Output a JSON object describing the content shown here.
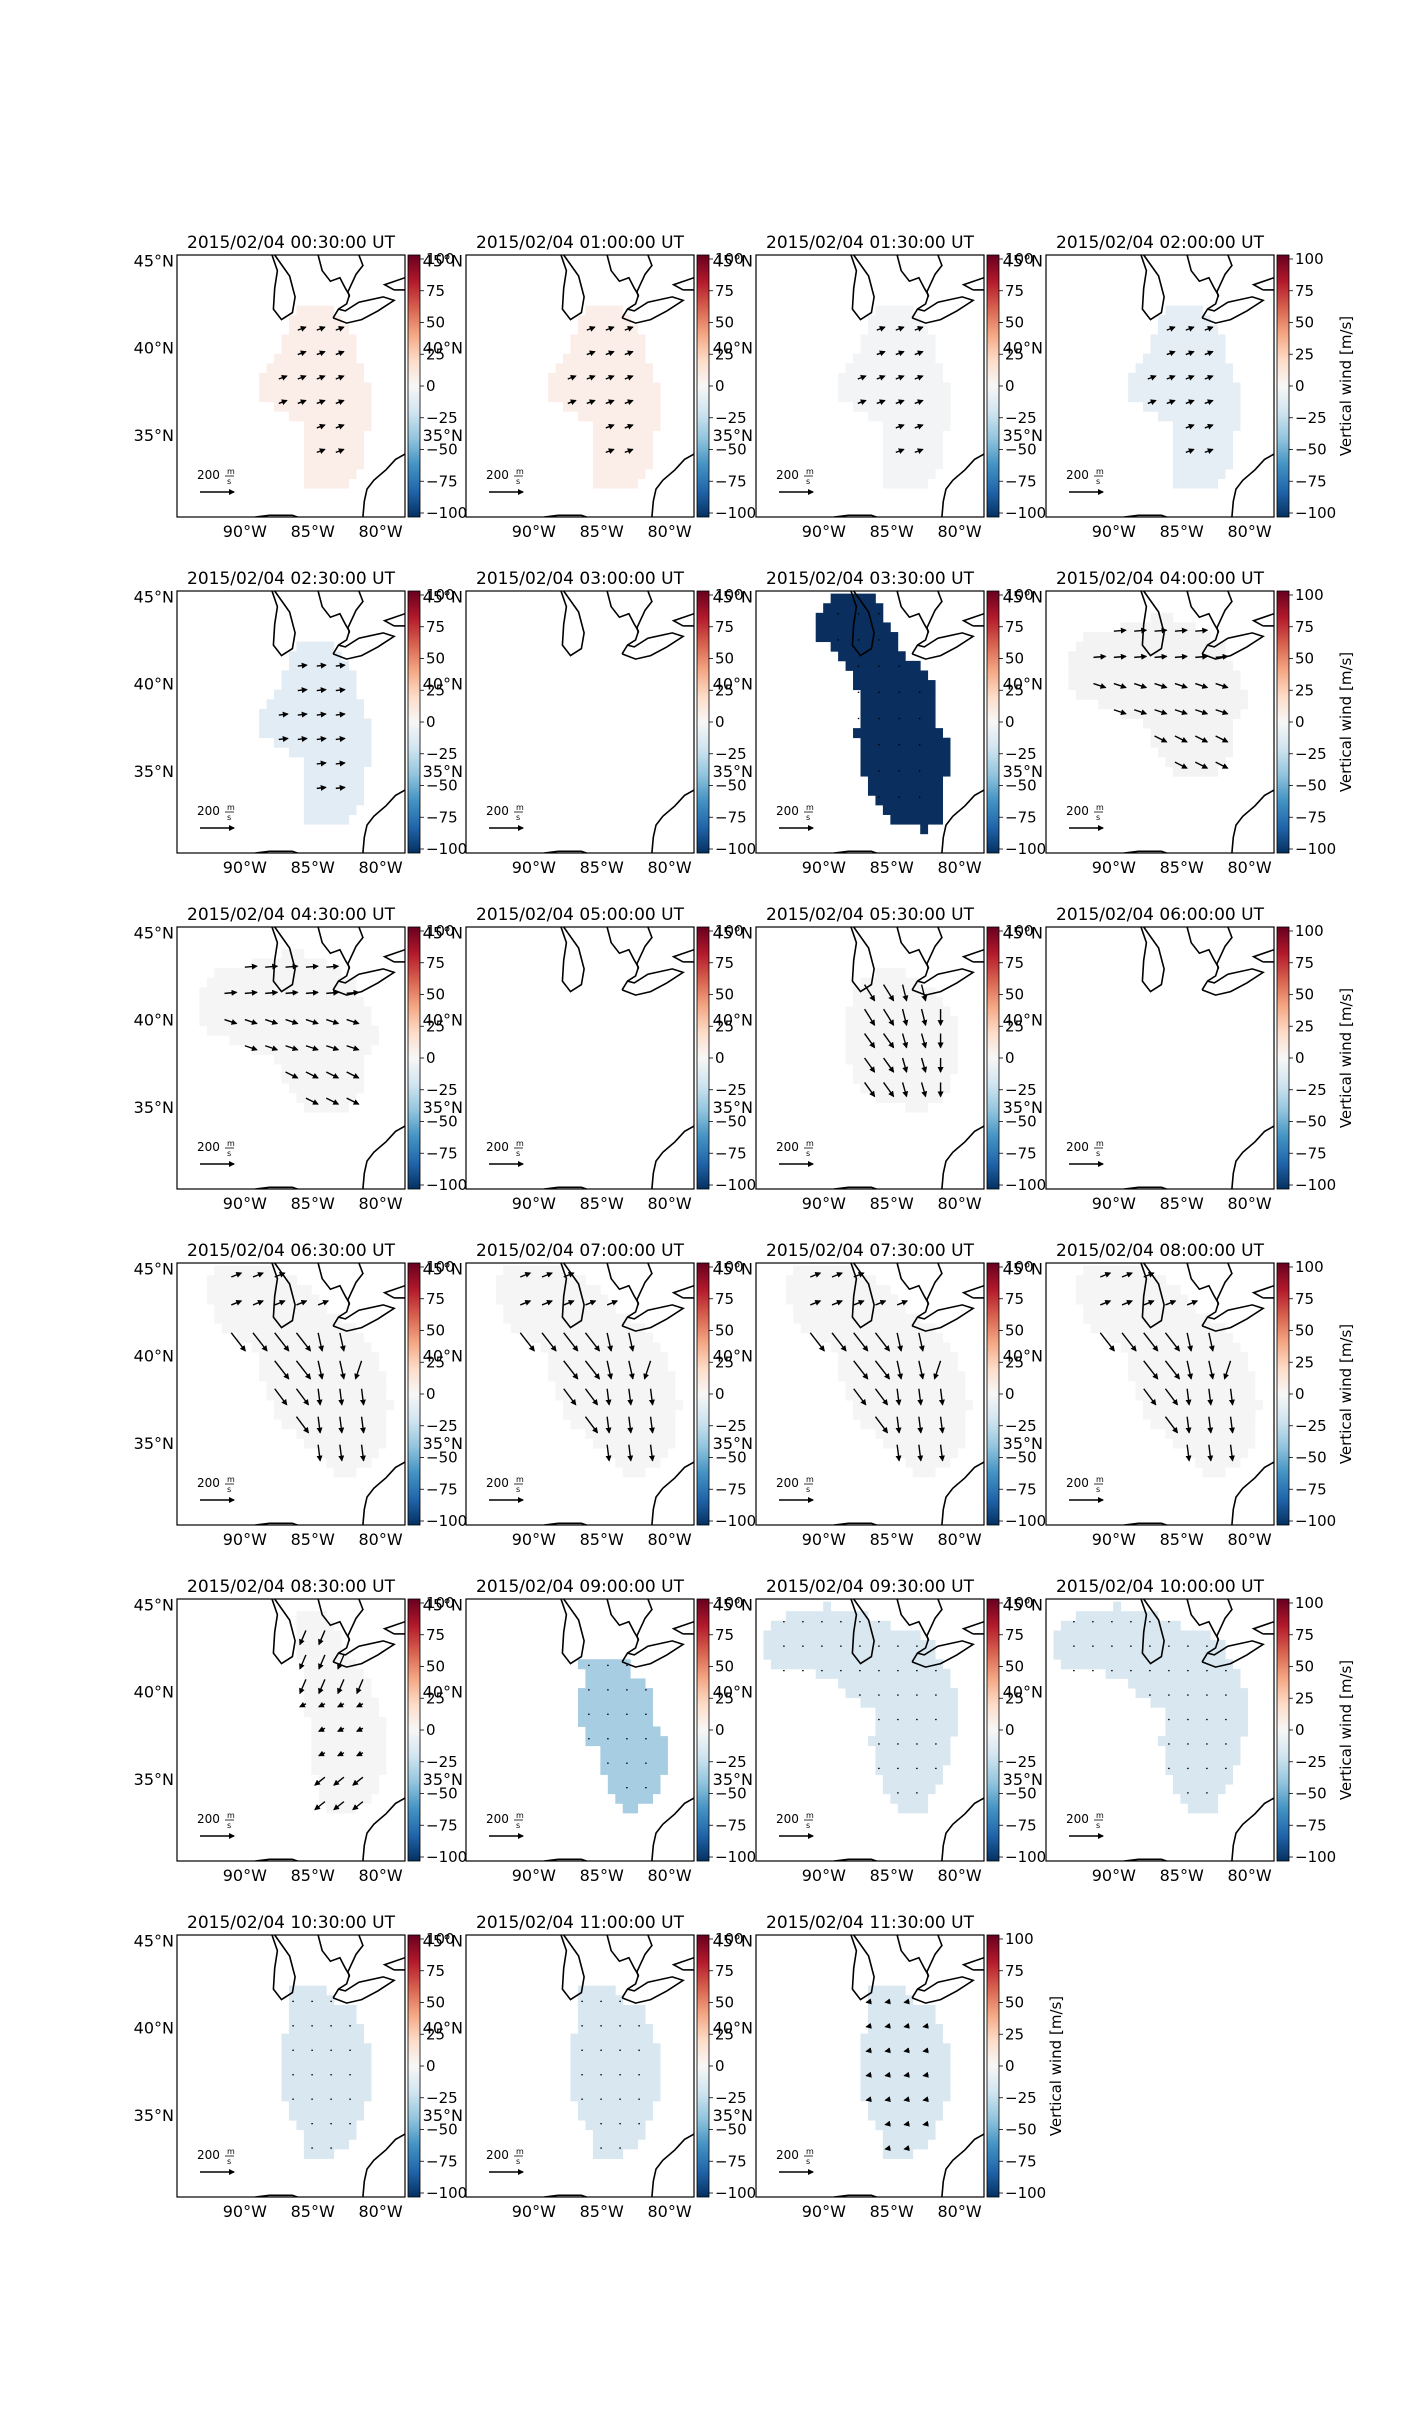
{
  "figure": {
    "colorbar_ticks": [
      "100",
      "75",
      "50",
      "25",
      "0",
      "−25",
      "−50",
      "−75",
      "−100"
    ],
    "colorbar_label": "Vertical wind [m/s]",
    "colorbar_range": [
      -100,
      100
    ],
    "colormap": "RdBu_r",
    "lat_labels": [
      "45°N",
      "40°N",
      "35°N"
    ],
    "lon_labels": [
      "90°W",
      "85°W",
      "80°W"
    ],
    "scale_label": "200",
    "scale_unit_num": "m",
    "scale_unit_den": "s",
    "coastline_color": "#000000",
    "arrow_color": "#000000"
  },
  "panels": [
    {
      "title": "2015/02/04 00:30:00 UT",
      "fill": "#fbeee9",
      "region": "A",
      "arrows": "A_small_ne",
      "has_colorbar_label": false
    },
    {
      "title": "2015/02/04 01:00:00 UT",
      "fill": "#fbeee9",
      "region": "A",
      "arrows": "A_small_ne",
      "has_colorbar_label": false
    },
    {
      "title": "2015/02/04 01:30:00 UT",
      "fill": "#f2f4f6",
      "region": "A",
      "arrows": "A_small_ne",
      "has_colorbar_label": false
    },
    {
      "title": "2015/02/04 02:00:00 UT",
      "fill": "#e6eef5",
      "region": "A",
      "arrows": "A_small_ne",
      "has_colorbar_label": true
    },
    {
      "title": "2015/02/04 02:30:00 UT",
      "fill": "#e2ecf4",
      "region": "A",
      "arrows": "A_east",
      "has_colorbar_label": false
    },
    {
      "title": "2015/02/04 03:00:00 UT",
      "fill": "none",
      "region": "none",
      "arrows": "none",
      "has_colorbar_label": false
    },
    {
      "title": "2015/02/04 03:30:00 UT",
      "fill": "#0a2f5f",
      "region": "B",
      "arrows": "B_dots",
      "has_colorbar_label": false
    },
    {
      "title": "2015/02/04 04:00:00 UT",
      "fill": "#f3f3f3",
      "region": "C",
      "arrows": "C_east",
      "has_colorbar_label": true
    },
    {
      "title": "2015/02/04 04:30:00 UT",
      "fill": "#f5f5f5",
      "region": "C",
      "arrows": "C_east",
      "has_colorbar_label": false
    },
    {
      "title": "2015/02/04 05:00:00 UT",
      "fill": "none",
      "region": "none",
      "arrows": "none",
      "has_colorbar_label": false
    },
    {
      "title": "2015/02/04 05:30:00 UT",
      "fill": "#f5f5f5",
      "region": "D",
      "arrows": "D_south",
      "has_colorbar_label": false
    },
    {
      "title": "2015/02/04 06:00:00 UT",
      "fill": "none",
      "region": "none",
      "arrows": "none",
      "has_colorbar_label": true
    },
    {
      "title": "2015/02/04 06:30:00 UT",
      "fill": "#f5f5f5",
      "region": "E",
      "arrows": "E_south",
      "has_colorbar_label": false
    },
    {
      "title": "2015/02/04 07:00:00 UT",
      "fill": "#f5f5f5",
      "region": "E",
      "arrows": "E_south",
      "has_colorbar_label": false
    },
    {
      "title": "2015/02/04 07:30:00 UT",
      "fill": "#f5f5f5",
      "region": "E",
      "arrows": "E_south",
      "has_colorbar_label": false
    },
    {
      "title": "2015/02/04 08:00:00 UT",
      "fill": "#f5f5f5",
      "region": "E",
      "arrows": "E_south",
      "has_colorbar_label": true
    },
    {
      "title": "2015/02/04 08:30:00 UT",
      "fill": "#f5f5f5",
      "region": "F",
      "arrows": "F_south",
      "has_colorbar_label": false
    },
    {
      "title": "2015/02/04 09:00:00 UT",
      "fill": "#a7cde2",
      "region": "G",
      "arrows": "G_dots",
      "has_colorbar_label": false
    },
    {
      "title": "2015/02/04 09:30:00 UT",
      "fill": "#d9e7f1",
      "region": "H",
      "arrows": "H_dots",
      "has_colorbar_label": false
    },
    {
      "title": "2015/02/04 10:00:00 UT",
      "fill": "#d9e7f1",
      "region": "H",
      "arrows": "H_dots",
      "has_colorbar_label": true
    },
    {
      "title": "2015/02/04 10:30:00 UT",
      "fill": "#d9e7f1",
      "region": "I",
      "arrows": "I_dots",
      "has_colorbar_label": false
    },
    {
      "title": "2015/02/04 11:00:00 UT",
      "fill": "#d9e7f1",
      "region": "I",
      "arrows": "I_dots",
      "has_colorbar_label": false
    },
    {
      "title": "2015/02/04 11:30:00 UT",
      "fill": "#d9e7f1",
      "region": "I",
      "arrows": "I_small_w",
      "has_colorbar_label": true
    }
  ]
}
